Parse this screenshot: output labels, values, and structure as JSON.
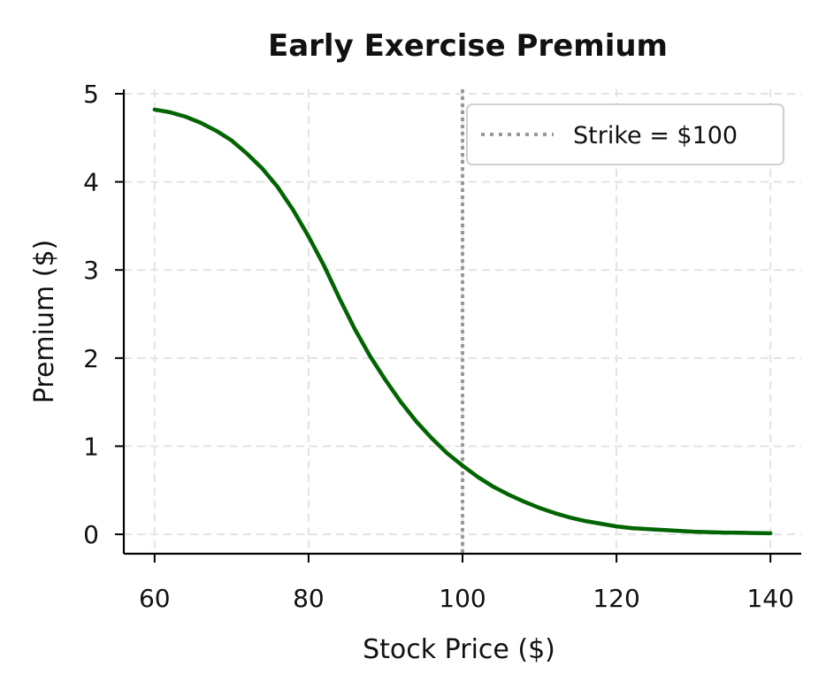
{
  "chart_data": {
    "type": "line",
    "title": "Early Exercise Premium",
    "xlabel": "Stock Price ($)",
    "ylabel": "Premium ($)",
    "xlim": [
      56,
      144
    ],
    "ylim": [
      -0.22,
      5.05
    ],
    "xticks": [
      60,
      80,
      100,
      120,
      140
    ],
    "yticks": [
      0,
      1,
      2,
      3,
      4,
      5
    ],
    "xtick_labels": [
      "60",
      "80",
      "100",
      "120",
      "140"
    ],
    "ytick_labels": [
      "0",
      "1",
      "2",
      "3",
      "4",
      "5"
    ],
    "grid": true,
    "legend_position": "top-right",
    "series": [
      {
        "name": "",
        "color": "#006400",
        "x": [
          60,
          62,
          64,
          66,
          68,
          70,
          72,
          74,
          76,
          78,
          80,
          82,
          84,
          86,
          88,
          90,
          92,
          94,
          96,
          98,
          100,
          102,
          104,
          106,
          108,
          110,
          112,
          114,
          116,
          118,
          120,
          122,
          124,
          126,
          128,
          130,
          132,
          134,
          136,
          138,
          140
        ],
        "y": [
          4.82,
          4.79,
          4.74,
          4.67,
          4.58,
          4.47,
          4.32,
          4.15,
          3.94,
          3.68,
          3.38,
          3.05,
          2.68,
          2.33,
          2.02,
          1.75,
          1.5,
          1.28,
          1.09,
          0.92,
          0.78,
          0.65,
          0.54,
          0.45,
          0.37,
          0.3,
          0.24,
          0.19,
          0.15,
          0.12,
          0.09,
          0.07,
          0.06,
          0.05,
          0.04,
          0.03,
          0.025,
          0.02,
          0.018,
          0.015,
          0.012
        ]
      }
    ],
    "reference_lines": [
      {
        "type": "vertical",
        "x": 100,
        "label": "Strike = $100",
        "color": "#999999",
        "style": "dotted"
      }
    ]
  }
}
